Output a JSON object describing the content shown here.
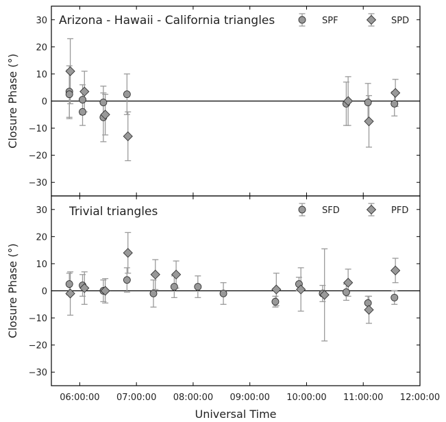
{
  "colors": {
    "marker_fill": "#999999",
    "marker_edge": "#333333",
    "errorbar": "#9a9a9a",
    "zero_line": "#000000"
  },
  "chart_data": [
    {
      "type": "scatter",
      "title": "Arizona - Hawaii - California triangles",
      "ylabel": "Closure Phase (°)",
      "ylim": [
        -35,
        35
      ],
      "yticks": [
        -30,
        -20,
        -10,
        0,
        10,
        20,
        30
      ],
      "ytick_labels": [
        "−30",
        "−20",
        "−10",
        "0",
        "10",
        "20",
        "30"
      ],
      "zero_line": true,
      "legend_position": "top-right",
      "series": [
        {
          "name": "SPF",
          "marker": "circle",
          "points": [
            {
              "x": "05:49:00",
              "y": 3.5,
              "err": 9.5
            },
            {
              "x": "05:49:00",
              "y": 2.5,
              "err": 9.0
            },
            {
              "x": "06:03:00",
              "y": 0.5,
              "err": 5.5
            },
            {
              "x": "06:03:00",
              "y": -4.0,
              "err": 5.0
            },
            {
              "x": "06:25:00",
              "y": -0.5,
              "err": 6.0
            },
            {
              "x": "06:25:00",
              "y": -6.0,
              "err": 9.0
            },
            {
              "x": "06:50:00",
              "y": 2.5,
              "err": 7.5
            },
            {
              "x": "10:42:00",
              "y": -1.0,
              "err": 8.0
            },
            {
              "x": "11:05:00",
              "y": -0.5,
              "err": 7.0
            },
            {
              "x": "11:33:00",
              "y": -1.0,
              "err": 4.5
            }
          ]
        },
        {
          "name": "SPD",
          "marker": "diamond",
          "points": [
            {
              "x": "05:50:00",
              "y": 11.0,
              "err": 12.0
            },
            {
              "x": "06:05:00",
              "y": 3.5,
              "err": 7.5
            },
            {
              "x": "06:27:00",
              "y": -5.0,
              "err": 7.5
            },
            {
              "x": "06:51:00",
              "y": -13.0,
              "err": 9.0
            },
            {
              "x": "10:44:00",
              "y": 0.0,
              "err": 9.0
            },
            {
              "x": "11:06:00",
              "y": -7.5,
              "err": 9.5
            },
            {
              "x": "11:34:00",
              "y": 3.0,
              "err": 5.0
            }
          ]
        }
      ]
    },
    {
      "type": "scatter",
      "title": "Trivial triangles",
      "xlabel": "Universal Time",
      "ylabel": "Closure Phase (°)",
      "ylim": [
        -35,
        35
      ],
      "yticks": [
        -30,
        -20,
        -10,
        0,
        10,
        20,
        30
      ],
      "ytick_labels": [
        "−30",
        "−20",
        "−10",
        "0",
        "10",
        "20",
        "30"
      ],
      "xlim": [
        "05:30:00",
        "12:00:00"
      ],
      "xticks": [
        "06:00:00",
        "07:00:00",
        "08:00:00",
        "09:00:00",
        "10:00:00",
        "11:00:00",
        "12:00:00"
      ],
      "zero_line": true,
      "legend_position": "top-right",
      "series": [
        {
          "name": "SFD",
          "marker": "circle",
          "points": [
            {
              "x": "05:49:00",
              "y": 2.5,
              "err": 4.0
            },
            {
              "x": "06:03:00",
              "y": 2.0,
              "err": 4.0
            },
            {
              "x": "06:25:00",
              "y": 0.0,
              "err": 4.0
            },
            {
              "x": "06:50:00",
              "y": 4.0,
              "err": 4.5
            },
            {
              "x": "07:18:00",
              "y": -1.0,
              "err": 5.0
            },
            {
              "x": "07:40:00",
              "y": 1.5,
              "err": 4.0
            },
            {
              "x": "08:05:00",
              "y": 1.5,
              "err": 4.0
            },
            {
              "x": "08:32:00",
              "y": -1.0,
              "err": 4.0
            },
            {
              "x": "09:27:00",
              "y": -4.0,
              "err": 2.0
            },
            {
              "x": "09:52:00",
              "y": 2.5,
              "err": 2.5
            },
            {
              "x": "10:17:00",
              "y": -1.0,
              "err": 3.0
            },
            {
              "x": "10:42:00",
              "y": -0.5,
              "err": 3.0
            },
            {
              "x": "11:05:00",
              "y": -4.5,
              "err": 2.5
            },
            {
              "x": "11:33:00",
              "y": -2.5,
              "err": 2.5
            }
          ]
        },
        {
          "name": "PFD",
          "marker": "diamond",
          "points": [
            {
              "x": "05:50:00",
              "y": -1.0,
              "err": 8.0
            },
            {
              "x": "06:05:00",
              "y": 1.0,
              "err": 6.0
            },
            {
              "x": "06:27:00",
              "y": 0.0,
              "err": 4.5
            },
            {
              "x": "06:51:00",
              "y": 14.0,
              "err": 7.5
            },
            {
              "x": "07:20:00",
              "y": 6.0,
              "err": 5.5
            },
            {
              "x": "07:42:00",
              "y": 6.0,
              "err": 5.0
            },
            {
              "x": "09:28:00",
              "y": 0.5,
              "err": 6.0
            },
            {
              "x": "09:54:00",
              "y": 0.5,
              "err": 8.0
            },
            {
              "x": "10:19:00",
              "y": -1.5,
              "err": 17.0
            },
            {
              "x": "10:44:00",
              "y": 3.0,
              "err": 5.0
            },
            {
              "x": "11:06:00",
              "y": -7.0,
              "err": 5.0
            },
            {
              "x": "11:34:00",
              "y": 7.5,
              "err": 4.5
            }
          ]
        }
      ]
    }
  ]
}
